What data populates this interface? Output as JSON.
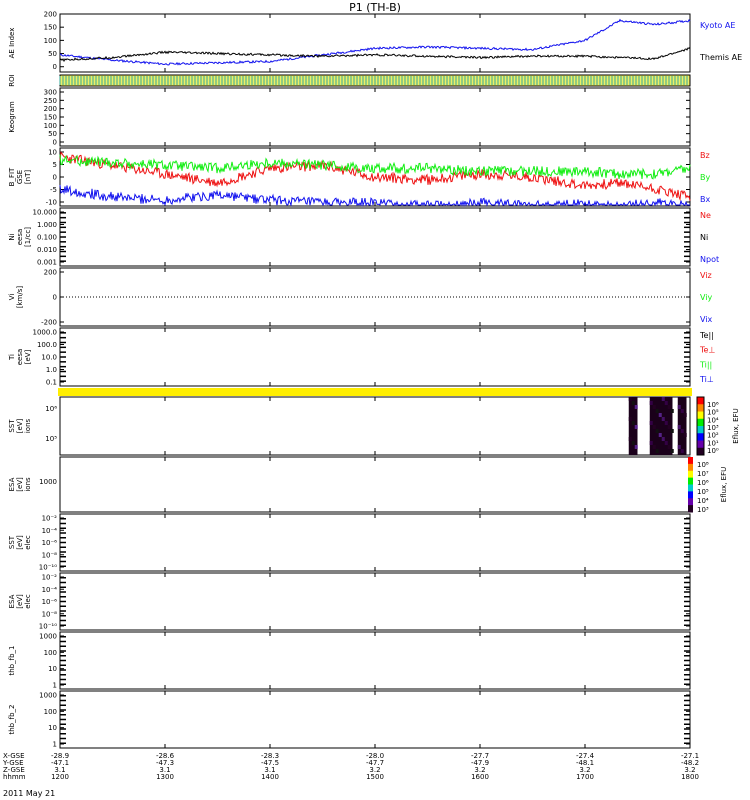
{
  "title": "P1  (TH-B)",
  "date_label": "2011 May 21",
  "colors": {
    "red": "#ee1111",
    "green": "#11ee11",
    "blue": "#1111ee",
    "black": "#000000",
    "yellow": "#ffee00",
    "roi_teal": "#33aa99",
    "roi_yellow": "#eeee66"
  },
  "time_axis": {
    "tick_labels": [
      "1200",
      "1300",
      "1400",
      "1500",
      "1600",
      "1700",
      "1800"
    ],
    "row_labels": [
      "X-GSE",
      "Y-GSE",
      "Z-GSE",
      "hhmm"
    ],
    "x_gse": [
      "-28.9",
      "-28.6",
      "-28.3",
      "-28.0",
      "-27.7",
      "-27.4",
      "-27.1"
    ],
    "y_gse": [
      "-47.1",
      "-47.3",
      "-47.5",
      "-47.7",
      "-47.9",
      "-48.1",
      "-48.2"
    ],
    "z_gse": [
      "3.1",
      "3.1",
      "3.1",
      "3.2",
      "3.2",
      "3.2",
      "3.2"
    ]
  },
  "chart_data": [
    {
      "type": "line",
      "id": "ae",
      "ylabel": "AE Index",
      "ylim": [
        -20,
        200
      ],
      "yticks": [
        "200",
        "150",
        "100",
        "50",
        "0"
      ],
      "x": [
        "12:00",
        "12:30",
        "13:00",
        "13:30",
        "14:00",
        "14:30",
        "15:00",
        "15:30",
        "16:00",
        "16:30",
        "17:00",
        "17:20",
        "17:40",
        "18:00"
      ],
      "series": [
        {
          "name": "Kyoto AE",
          "color": "blue",
          "values": [
            45,
            25,
            10,
            15,
            20,
            45,
            70,
            75,
            70,
            65,
            100,
            175,
            160,
            175
          ]
        },
        {
          "name": "Themis AE",
          "color": "black",
          "values": [
            25,
            35,
            55,
            50,
            45,
            40,
            45,
            40,
            35,
            40,
            40,
            35,
            30,
            70
          ]
        }
      ]
    },
    {
      "type": "heatmap",
      "id": "roi",
      "ylabel": "ROI"
    },
    {
      "type": "line",
      "id": "keogram",
      "ylabel": "Keogram",
      "ylim": [
        0,
        300
      ],
      "yticks": [
        "300",
        "250",
        "200",
        "150",
        "100",
        "50",
        "0"
      ]
    },
    {
      "type": "line",
      "id": "bfgm",
      "ylabel": "B_FIT",
      "ylabel2": "GSE",
      "ylabel3": "[nT]",
      "ylim": [
        -10,
        10
      ],
      "yticks": [
        "10",
        "5",
        "0",
        "-5",
        "-10"
      ],
      "x": [
        "12:00",
        "12:30",
        "13:00",
        "13:30",
        "14:00",
        "14:30",
        "15:00",
        "15:30",
        "16:00",
        "16:30",
        "17:00",
        "17:20",
        "17:40",
        "18:00"
      ],
      "series": [
        {
          "name": "Bz",
          "color": "red",
          "values": [
            7,
            4,
            1,
            -2,
            3,
            4,
            0,
            -1,
            1,
            0,
            -3,
            -2,
            -4,
            -7
          ]
        },
        {
          "name": "By",
          "color": "green",
          "values": [
            6,
            5,
            4,
            3,
            5,
            4,
            3,
            3,
            2,
            2,
            2,
            1,
            1,
            3
          ]
        },
        {
          "name": "Bx",
          "color": "blue",
          "values": [
            -4,
            -7,
            -8,
            -6,
            -8,
            -9,
            -9,
            -10,
            -9,
            -10,
            -9,
            -10,
            -9,
            -10
          ]
        }
      ]
    },
    {
      "type": "line",
      "id": "density",
      "ylabel": "Ni",
      "ylabel2": "eesa",
      "ylabel3": "[1/cc]",
      "scale": "log",
      "yticks": [
        "10.000",
        "1.000",
        "0.100",
        "0.010",
        "0.001"
      ],
      "series": [
        {
          "name": "Ne",
          "color": "red",
          "values": []
        },
        {
          "name": "Ni",
          "color": "black",
          "values": []
        },
        {
          "name": "Npot",
          "color": "blue",
          "values": []
        }
      ]
    },
    {
      "type": "line",
      "id": "velocity",
      "ylabel": "Vi",
      "ylabel3": "[km/s]",
      "ylim": [
        -300,
        300
      ],
      "yticks": [
        "200",
        "0",
        "-200"
      ],
      "series": [
        {
          "name": "Viz",
          "color": "red",
          "values": []
        },
        {
          "name": "Viy",
          "color": "green",
          "values": []
        },
        {
          "name": "Vix",
          "color": "blue",
          "values": []
        }
      ]
    },
    {
      "type": "line",
      "id": "temperature",
      "ylabel": "Ti",
      "ylabel2": "eesa",
      "ylabel3": "[eV]",
      "scale": "log",
      "yticks": [
        "1000.0",
        "100.0",
        "10.0",
        "1.0",
        "0.1"
      ],
      "series": [
        {
          "name": "Te||",
          "color": "black",
          "values": []
        },
        {
          "name": "Te⊥",
          "color": "red",
          "values": []
        },
        {
          "name": "Ti||",
          "color": "green",
          "values": []
        },
        {
          "name": "Ti⊥",
          "color": "blue",
          "values": []
        }
      ]
    },
    {
      "type": "heatmap",
      "id": "mode_bar",
      "note": "yellow bar spanning full time range"
    },
    {
      "type": "heatmap",
      "id": "sst_spec",
      "ylabel": "SST",
      "ylabel2": "[eV]",
      "ylabel3": "ions",
      "yticks": [
        "10⁶",
        "10⁵"
      ],
      "colorbar_label": "Eflux, EFU",
      "colorbar_ticks": [
        "10⁶",
        "10⁵",
        "10⁴",
        "10³",
        "10²",
        "10¹",
        "10⁰"
      ],
      "active_intervals": [
        [
          "17:25",
          "17:30"
        ],
        [
          "17:37",
          "17:50"
        ],
        [
          "17:53",
          "17:58"
        ]
      ]
    },
    {
      "type": "heatmap",
      "id": "esa_spec",
      "ylabel": "ESA",
      "ylabel2": "[eV]",
      "ylabel3": "ions",
      "yticks": [
        "1000"
      ],
      "colorbar_label": "Eflux, EFU",
      "colorbar_ticks": [
        "10⁸",
        "10⁷",
        "10⁶",
        "10⁵",
        "10⁴",
        "10³"
      ]
    },
    {
      "type": "line",
      "id": "sst_elec",
      "ylabel": "SST",
      "ylabel2": "[eV]",
      "ylabel3": "elec",
      "scale": "log",
      "yticks": [
        "10⁻²",
        "10⁻⁴",
        "10⁻⁶",
        "10⁻⁸",
        "10⁻¹⁰"
      ]
    },
    {
      "type": "line",
      "id": "esa_elec",
      "ylabel": "ESA",
      "ylabel2": "[eV]",
      "ylabel3": "elec",
      "scale": "log",
      "yticks": [
        "10⁻²",
        "10⁻⁴",
        "10⁻⁶",
        "10⁻⁸",
        "10⁻¹⁰"
      ]
    },
    {
      "type": "line",
      "id": "fb1",
      "ylabel": "thb_fb_1",
      "scale": "log",
      "yticks": [
        "1000",
        "100",
        "10",
        "1"
      ]
    },
    {
      "type": "line",
      "id": "fb2",
      "ylabel": "thb_fb_2",
      "scale": "log",
      "yticks": [
        "1000",
        "100",
        "10",
        "1"
      ]
    }
  ]
}
